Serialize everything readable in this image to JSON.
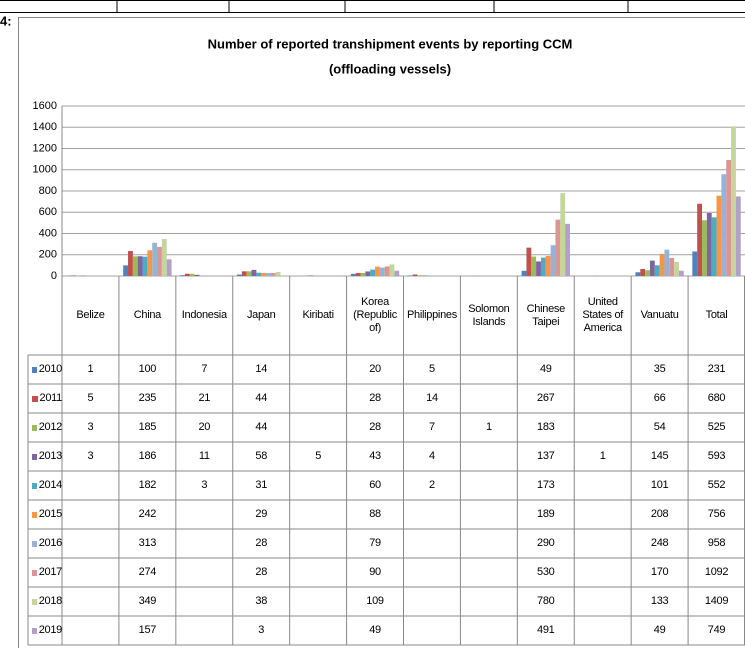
{
  "fragment_label": "4:",
  "chart_data": {
    "type": "bar",
    "title": "Number of reported transhipment  events by reporting CCM",
    "subtitle": "(offloading vessels)",
    "categories": [
      "Belize",
      "China",
      "Indonesia",
      "Japan",
      "Kiribati",
      "Korea (Republic of)",
      "Philippines",
      "Solomon Islands",
      "Chinese Taipei",
      "United States of America",
      "Vanuatu",
      "Total"
    ],
    "ylim": [
      0,
      1600
    ],
    "yticks": [
      0,
      200,
      400,
      600,
      800,
      1000,
      1200,
      1400,
      1600
    ],
    "grid": true,
    "series": [
      {
        "name": "2010",
        "color": "#4f81bd",
        "values": [
          1,
          100,
          7,
          14,
          null,
          20,
          5,
          null,
          49,
          null,
          35,
          231
        ]
      },
      {
        "name": "2011",
        "color": "#c0504d",
        "values": [
          5,
          235,
          21,
          44,
          null,
          28,
          14,
          null,
          267,
          null,
          66,
          680
        ]
      },
      {
        "name": "2012",
        "color": "#9bbb59",
        "values": [
          3,
          185,
          20,
          44,
          null,
          28,
          7,
          1,
          183,
          null,
          54,
          525
        ]
      },
      {
        "name": "2013",
        "color": "#8064a2",
        "values": [
          3,
          186,
          11,
          58,
          5,
          43,
          4,
          null,
          137,
          1,
          145,
          593
        ]
      },
      {
        "name": "2014",
        "color": "#4bacc6",
        "values": [
          null,
          182,
          3,
          31,
          null,
          60,
          2,
          null,
          173,
          null,
          101,
          552
        ]
      },
      {
        "name": "2015",
        "color": "#f79646",
        "values": [
          null,
          242,
          null,
          29,
          null,
          88,
          null,
          null,
          189,
          null,
          208,
          756
        ]
      },
      {
        "name": "2016",
        "color": "#95b3d7",
        "values": [
          null,
          313,
          null,
          28,
          null,
          79,
          null,
          null,
          290,
          null,
          248,
          958
        ]
      },
      {
        "name": "2017",
        "color": "#da9694",
        "values": [
          null,
          274,
          null,
          28,
          null,
          90,
          null,
          null,
          530,
          null,
          170,
          1092
        ]
      },
      {
        "name": "2018",
        "color": "#c3d69b",
        "values": [
          null,
          349,
          null,
          38,
          null,
          109,
          null,
          null,
          780,
          null,
          133,
          1409
        ]
      },
      {
        "name": "2019",
        "color": "#b1a0c7",
        "values": [
          null,
          157,
          null,
          3,
          null,
          49,
          null,
          null,
          491,
          null,
          49,
          749
        ]
      }
    ]
  }
}
